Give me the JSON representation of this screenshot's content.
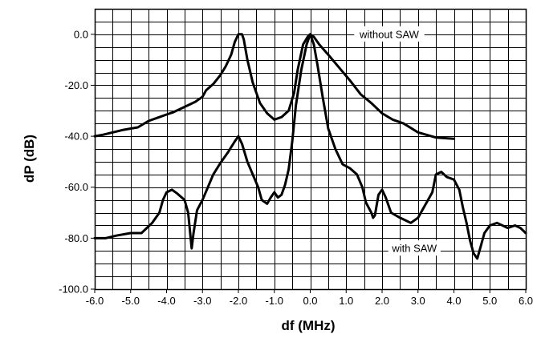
{
  "chart_data": {
    "type": "line",
    "title": "",
    "xlabel": "df (MHz)",
    "ylabel": "dP (dB)",
    "xlim": [
      -6.0,
      6.0
    ],
    "ylim": [
      -100.0,
      10.0
    ],
    "x_ticks": [
      -6.0,
      -5.0,
      -4.0,
      -3.0,
      -2.0,
      -1.0,
      0.0,
      1.0,
      2.0,
      3.0,
      4.0,
      5.0,
      6.0
    ],
    "x_tick_labels": [
      "-6.0",
      "-5.0",
      "-4.0",
      "-3.0",
      "-2.0",
      "-1.0",
      "0.0",
      "1.0",
      "2.0",
      "3.0",
      "4.0",
      "5.0",
      "6.0"
    ],
    "y_ticks": [
      0.0,
      -20.0,
      -40.0,
      -60.0,
      -80.0,
      -100.0
    ],
    "y_tick_labels": [
      "0.0",
      "-20.0",
      "-40.0",
      "-60.0",
      "-80.0",
      "-100.0"
    ],
    "grid": true,
    "x_grid_step": 0.5,
    "y_grid_step": 5,
    "legend": "none",
    "series": [
      {
        "annotation": "without SAW",
        "annotation_at": [
          2.2,
          0
        ],
        "points": [
          [
            -6.0,
            -40
          ],
          [
            -5.8,
            -39.5
          ],
          [
            -5.5,
            -38.5
          ],
          [
            -5.2,
            -37.5
          ],
          [
            -5.0,
            -37
          ],
          [
            -4.8,
            -36.5
          ],
          [
            -4.5,
            -34
          ],
          [
            -4.2,
            -32.5
          ],
          [
            -4.0,
            -31.5
          ],
          [
            -3.8,
            -30.5
          ],
          [
            -3.5,
            -28.5
          ],
          [
            -3.2,
            -26.5
          ],
          [
            -3.0,
            -24.5
          ],
          [
            -2.9,
            -22
          ],
          [
            -2.7,
            -19.5
          ],
          [
            -2.5,
            -16
          ],
          [
            -2.35,
            -12.5
          ],
          [
            -2.2,
            -8
          ],
          [
            -2.1,
            -3
          ],
          [
            -2.0,
            0
          ],
          [
            -1.9,
            0
          ],
          [
            -1.85,
            -2
          ],
          [
            -1.75,
            -10
          ],
          [
            -1.6,
            -19
          ],
          [
            -1.4,
            -27
          ],
          [
            -1.2,
            -31
          ],
          [
            -1.0,
            -33.5
          ],
          [
            -0.8,
            -32.5
          ],
          [
            -0.6,
            -30
          ],
          [
            -0.45,
            -23
          ],
          [
            -0.35,
            -14
          ],
          [
            -0.2,
            -4
          ],
          [
            -0.05,
            -0.5
          ],
          [
            0.0,
            0
          ],
          [
            0.1,
            -1
          ],
          [
            0.25,
            -4
          ],
          [
            0.5,
            -8
          ],
          [
            0.8,
            -13
          ],
          [
            1.1,
            -18
          ],
          [
            1.4,
            -23.5
          ],
          [
            1.7,
            -27
          ],
          [
            2.0,
            -31
          ],
          [
            2.3,
            -33.5
          ],
          [
            2.6,
            -35
          ],
          [
            3.0,
            -38.5
          ],
          [
            3.5,
            -40.5
          ],
          [
            4.0,
            -41
          ]
        ]
      },
      {
        "annotation": "with SAW",
        "annotation_at": [
          2.9,
          -84
        ],
        "points": [
          [
            -6.0,
            -80
          ],
          [
            -5.7,
            -80
          ],
          [
            -5.4,
            -79
          ],
          [
            -5.0,
            -78
          ],
          [
            -4.7,
            -78
          ],
          [
            -4.4,
            -74
          ],
          [
            -4.2,
            -70
          ],
          [
            -4.1,
            -65
          ],
          [
            -4.0,
            -62
          ],
          [
            -3.85,
            -61
          ],
          [
            -3.7,
            -62.5
          ],
          [
            -3.5,
            -65
          ],
          [
            -3.4,
            -70
          ],
          [
            -3.35,
            -77
          ],
          [
            -3.3,
            -84
          ],
          [
            -3.25,
            -78
          ],
          [
            -3.15,
            -69
          ],
          [
            -3.0,
            -65
          ],
          [
            -2.85,
            -60
          ],
          [
            -2.7,
            -55
          ],
          [
            -2.5,
            -50.5
          ],
          [
            -2.3,
            -46.5
          ],
          [
            -2.1,
            -42
          ],
          [
            -2.0,
            -40
          ],
          [
            -1.9,
            -43
          ],
          [
            -1.75,
            -50
          ],
          [
            -1.6,
            -55
          ],
          [
            -1.45,
            -60
          ],
          [
            -1.35,
            -65
          ],
          [
            -1.2,
            -66.5
          ],
          [
            -1.1,
            -64
          ],
          [
            -1.0,
            -62
          ],
          [
            -0.9,
            -64
          ],
          [
            -0.8,
            -63
          ],
          [
            -0.7,
            -59
          ],
          [
            -0.6,
            -53
          ],
          [
            -0.5,
            -42
          ],
          [
            -0.4,
            -28
          ],
          [
            -0.25,
            -14
          ],
          [
            -0.1,
            -4
          ],
          [
            0.0,
            0
          ],
          [
            0.1,
            -4
          ],
          [
            0.2,
            -12
          ],
          [
            0.35,
            -25
          ],
          [
            0.5,
            -37
          ],
          [
            0.7,
            -45
          ],
          [
            0.9,
            -51
          ],
          [
            1.1,
            -52.5
          ],
          [
            1.3,
            -55
          ],
          [
            1.45,
            -60
          ],
          [
            1.55,
            -66
          ],
          [
            1.7,
            -70
          ],
          [
            1.75,
            -72
          ],
          [
            1.8,
            -71
          ],
          [
            1.9,
            -63
          ],
          [
            2.0,
            -61
          ],
          [
            2.1,
            -64
          ],
          [
            2.25,
            -70
          ],
          [
            2.5,
            -72
          ],
          [
            2.8,
            -74
          ],
          [
            3.0,
            -72
          ],
          [
            3.2,
            -67
          ],
          [
            3.4,
            -62
          ],
          [
            3.5,
            -55
          ],
          [
            3.65,
            -54
          ],
          [
            3.8,
            -56
          ],
          [
            4.0,
            -57
          ],
          [
            4.15,
            -61
          ],
          [
            4.25,
            -68
          ],
          [
            4.35,
            -74
          ],
          [
            4.45,
            -81
          ],
          [
            4.55,
            -86
          ],
          [
            4.65,
            -88
          ],
          [
            4.75,
            -83
          ],
          [
            4.85,
            -78
          ],
          [
            5.0,
            -75
          ],
          [
            5.2,
            -74
          ],
          [
            5.5,
            -76
          ],
          [
            5.7,
            -75
          ],
          [
            5.85,
            -76
          ],
          [
            6.0,
            -78
          ]
        ]
      }
    ]
  }
}
